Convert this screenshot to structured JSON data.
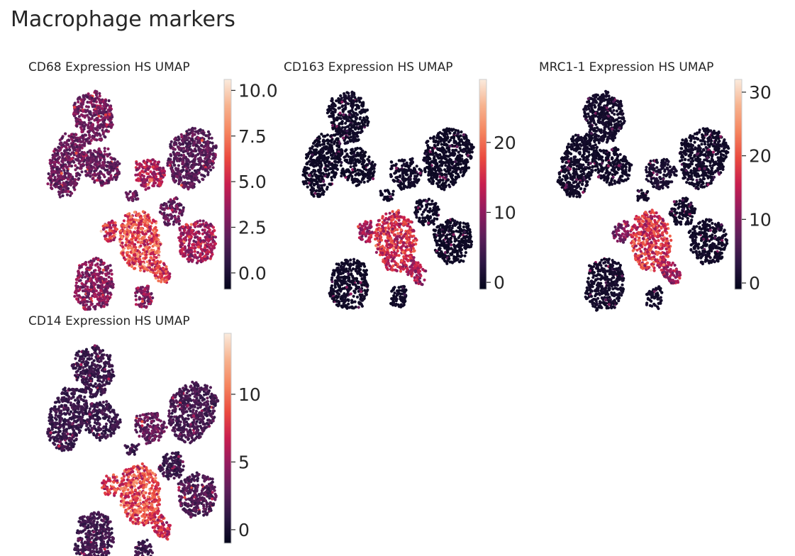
{
  "figure": {
    "title": "Macrophage markers"
  },
  "colors": {
    "colormap": [
      "#03051a",
      "#2c1643",
      "#5c1e5a",
      "#921b5f",
      "#c81e4f",
      "#ea4a3f",
      "#f5845e",
      "#f7b38f",
      "#faebdd"
    ],
    "background_dot": "#2a1432"
  },
  "chart_data": [
    {
      "type": "scatter",
      "embedding": "UMAP",
      "title": "CD68 Expression HS UMAP",
      "colorbar": {
        "range": [
          -0.9,
          10.6
        ],
        "ticks": [
          0.0,
          2.5,
          5.0,
          7.5,
          10.0
        ],
        "tick_labels": [
          "0.0",
          "2.5",
          "5.0",
          "7.5",
          "10.0"
        ]
      },
      "base_level": 0.32,
      "hotspot_levels": {
        "top": 0.35,
        "upper_right": 0.28,
        "center": 0.52,
        "left_mid": 0.62,
        "main": 0.72,
        "main_tail": 0.7,
        "right": 0.48,
        "bottom_left": 0.4,
        "bottom_mid": 0.4
      }
    },
    {
      "type": "scatter",
      "embedding": "UMAP",
      "title": "CD163 Expression HS UMAP",
      "colorbar": {
        "range": [
          -1,
          29
        ],
        "ticks": [
          0,
          10,
          20
        ],
        "tick_labels": [
          "0",
          "10",
          "20"
        ]
      },
      "base_level": 0.04,
      "hotspot_levels": {
        "top": 0.05,
        "upper_right": 0.04,
        "center": 0.05,
        "left_mid": 0.45,
        "main": 0.6,
        "main_tail": 0.5,
        "right": 0.04,
        "bottom_left": 0.05,
        "bottom_mid": 0.05
      }
    },
    {
      "type": "scatter",
      "embedding": "UMAP",
      "title": "MRC1-1 Expression HS UMAP",
      "colorbar": {
        "range": [
          -1,
          32
        ],
        "ticks": [
          0,
          10,
          20,
          30
        ],
        "tick_labels": [
          "0",
          "10",
          "20",
          "30"
        ]
      },
      "base_level": 0.05,
      "hotspot_levels": {
        "top": 0.06,
        "upper_right": 0.05,
        "center": 0.08,
        "left_mid": 0.35,
        "main": 0.62,
        "main_tail": 0.5,
        "right": 0.05,
        "bottom_left": 0.06,
        "bottom_mid": 0.06
      }
    },
    {
      "type": "scatter",
      "embedding": "UMAP",
      "title": "CD14 Expression HS UMAP",
      "colorbar": {
        "range": [
          -1,
          14.5
        ],
        "ticks": [
          0,
          5,
          10
        ],
        "tick_labels": [
          "0",
          "5",
          "10"
        ]
      },
      "base_level": 0.18,
      "hotspot_levels": {
        "top": 0.18,
        "upper_right": 0.22,
        "center": 0.3,
        "left_mid": 0.65,
        "main": 0.7,
        "main_tail": 0.6,
        "right": 0.25,
        "bottom_left": 0.2,
        "bottom_mid": 0.2
      }
    }
  ]
}
